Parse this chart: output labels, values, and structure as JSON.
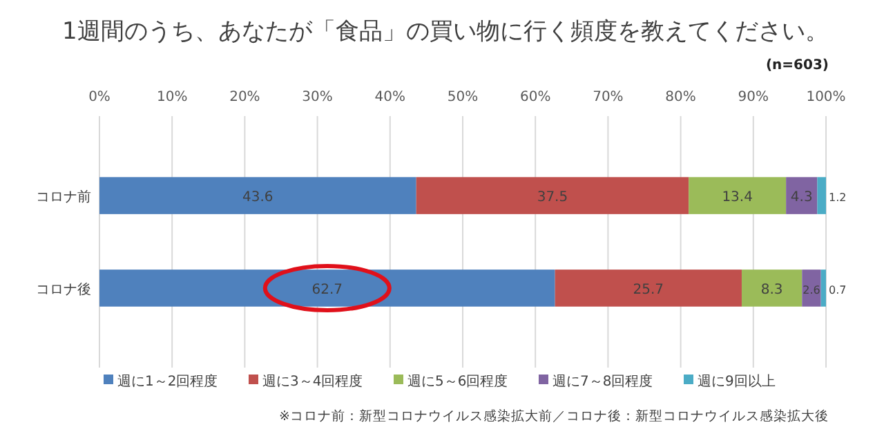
{
  "chart_data": {
    "type": "bar",
    "orientation": "horizontal",
    "stacked": true,
    "title": "1週間のうち、あなたが「食品」の買い物に行く頻度を教えてください。",
    "categories": [
      "コロナ前",
      "コロナ後"
    ],
    "series": [
      {
        "name": "週に1～2回程度",
        "color": "#4f81bd",
        "values": [
          43.6,
          62.7
        ]
      },
      {
        "name": "週に3～4回程度",
        "color": "#c0504d",
        "values": [
          37.5,
          25.7
        ]
      },
      {
        "name": "週に5～6回程度",
        "color": "#9bbb59",
        "values": [
          13.4,
          8.3
        ]
      },
      {
        "name": "週に7～8回程度",
        "color": "#8064a2",
        "values": [
          4.3,
          2.6
        ]
      },
      {
        "name": "週に9回以上",
        "color": "#4bacc6",
        "values": [
          1.2,
          0.7
        ]
      }
    ],
    "xlim": [
      0,
      100
    ],
    "xticks": [
      {
        "value": 0,
        "label": "0%"
      },
      {
        "value": 10,
        "label": "10%"
      },
      {
        "value": 20,
        "label": "20%"
      },
      {
        "value": 30,
        "label": "30%"
      },
      {
        "value": 40,
        "label": "40%"
      },
      {
        "value": 50,
        "label": "50%"
      },
      {
        "value": 60,
        "label": "60%"
      },
      {
        "value": 70,
        "label": "70%"
      },
      {
        "value": 80,
        "label": "80%"
      },
      {
        "value": 90,
        "label": "90%"
      },
      {
        "value": 100,
        "label": "100%"
      }
    ],
    "grid": "x",
    "legend": "bottom",
    "data_labels": true,
    "annotations": [
      "(n=603)",
      "※コロナ前：新型コロナウイルス感染拡大前／コロナ後：新型コロナウイルス感染拡大後"
    ]
  }
}
